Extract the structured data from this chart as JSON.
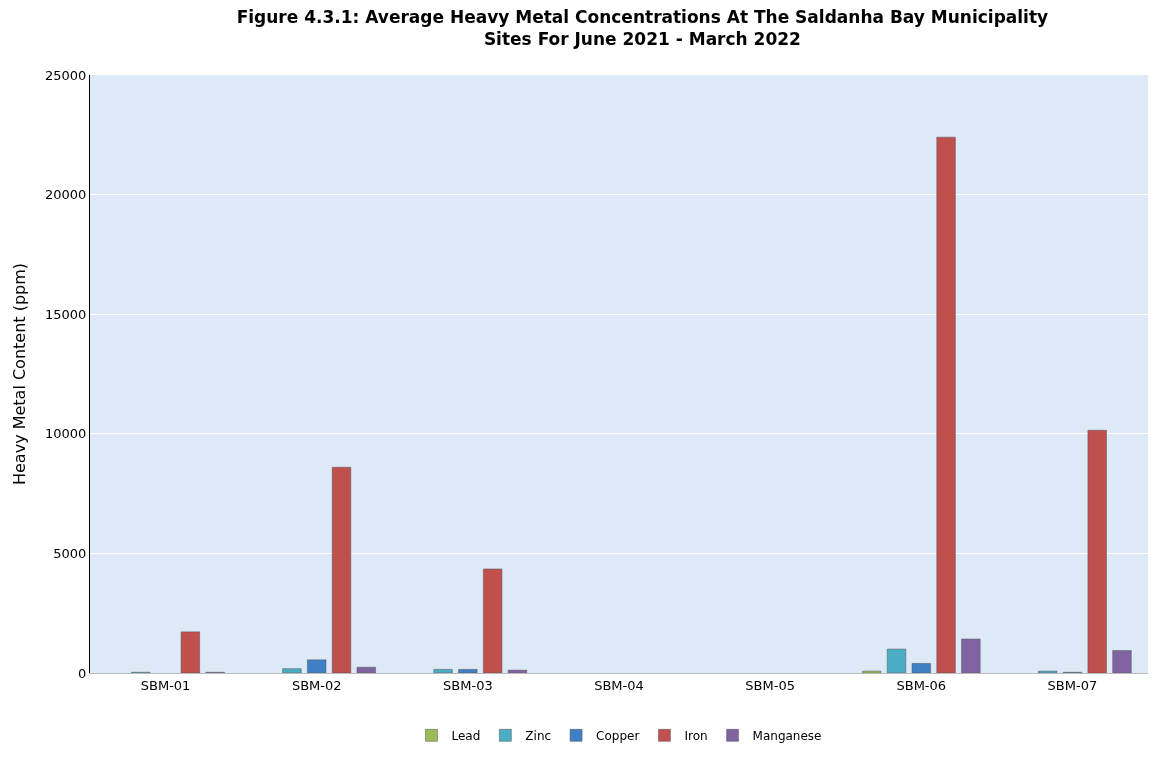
{
  "chart_data": {
    "type": "bar",
    "title": "Figure 4.3.1: Average Heavy Metal Concentrations At The Saldanha Bay Municipality\nSites For June 2021 - March 2022",
    "ylabel": "Heavy Metal Content (ppm)",
    "categories": [
      "SBM-01",
      "SBM-02",
      "SBM-03",
      "SBM-04",
      "SBM-05",
      "SBM-06",
      "SBM-07"
    ],
    "series": [
      {
        "name": "Lead",
        "color": "#9bbb59",
        "values": [
          null,
          null,
          null,
          null,
          null,
          80,
          null
        ]
      },
      {
        "name": "Zinc",
        "color": "#4bacc6",
        "values": [
          30,
          180,
          150,
          null,
          null,
          1000,
          80
        ]
      },
      {
        "name": "Copper",
        "color": "#3f7fc6",
        "values": [
          null,
          550,
          150,
          null,
          null,
          400,
          30
        ]
      },
      {
        "name": "Iron",
        "color": "#c0504d",
        "values": [
          1720,
          8600,
          4350,
          null,
          null,
          22400,
          10150
        ]
      },
      {
        "name": "Manganese",
        "color": "#8064a2",
        "values": [
          30,
          240,
          120,
          null,
          null,
          1420,
          940
        ]
      }
    ],
    "ylim": [
      0,
      25000
    ],
    "yticks": [
      0,
      5000,
      10000,
      15000,
      20000,
      25000
    ],
    "grid": "y",
    "legend": "bottom"
  }
}
